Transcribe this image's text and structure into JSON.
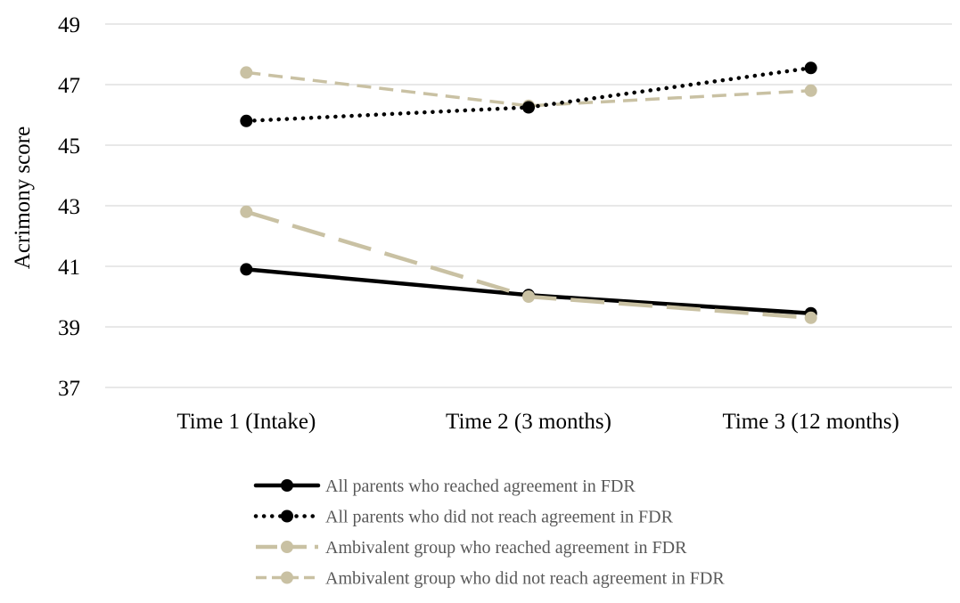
{
  "chart_data": {
    "type": "line",
    "title": "",
    "xlabel": "",
    "ylabel": "Acrimony score",
    "categories": [
      "Time 1 (Intake)",
      "Time 2 (3 months)",
      "Time 3 (12 months)"
    ],
    "ylim": [
      37,
      49
    ],
    "yticks": [
      "37",
      "39",
      "41",
      "43",
      "45",
      "47",
      "49"
    ],
    "grid": true,
    "legend_position": "bottom",
    "series": [
      {
        "name": "All parents who reached agreement in FDR",
        "values": [
          40.9,
          40.05,
          39.45
        ],
        "color": "#000000",
        "line_style": "solid"
      },
      {
        "name": "All parents who did not reach agreement in FDR",
        "values": [
          45.8,
          46.25,
          47.55
        ],
        "color": "#000000",
        "line_style": "dotted"
      },
      {
        "name": "Ambivalent group who reached agreement in FDR",
        "values": [
          42.8,
          40.0,
          39.3
        ],
        "color": "#c9c1a3",
        "line_style": "long-dash"
      },
      {
        "name": "Ambivalent group who did not reach agreement in FDR",
        "values": [
          47.4,
          46.3,
          46.8
        ],
        "color": "#c9c1a3",
        "line_style": "dash"
      }
    ]
  }
}
